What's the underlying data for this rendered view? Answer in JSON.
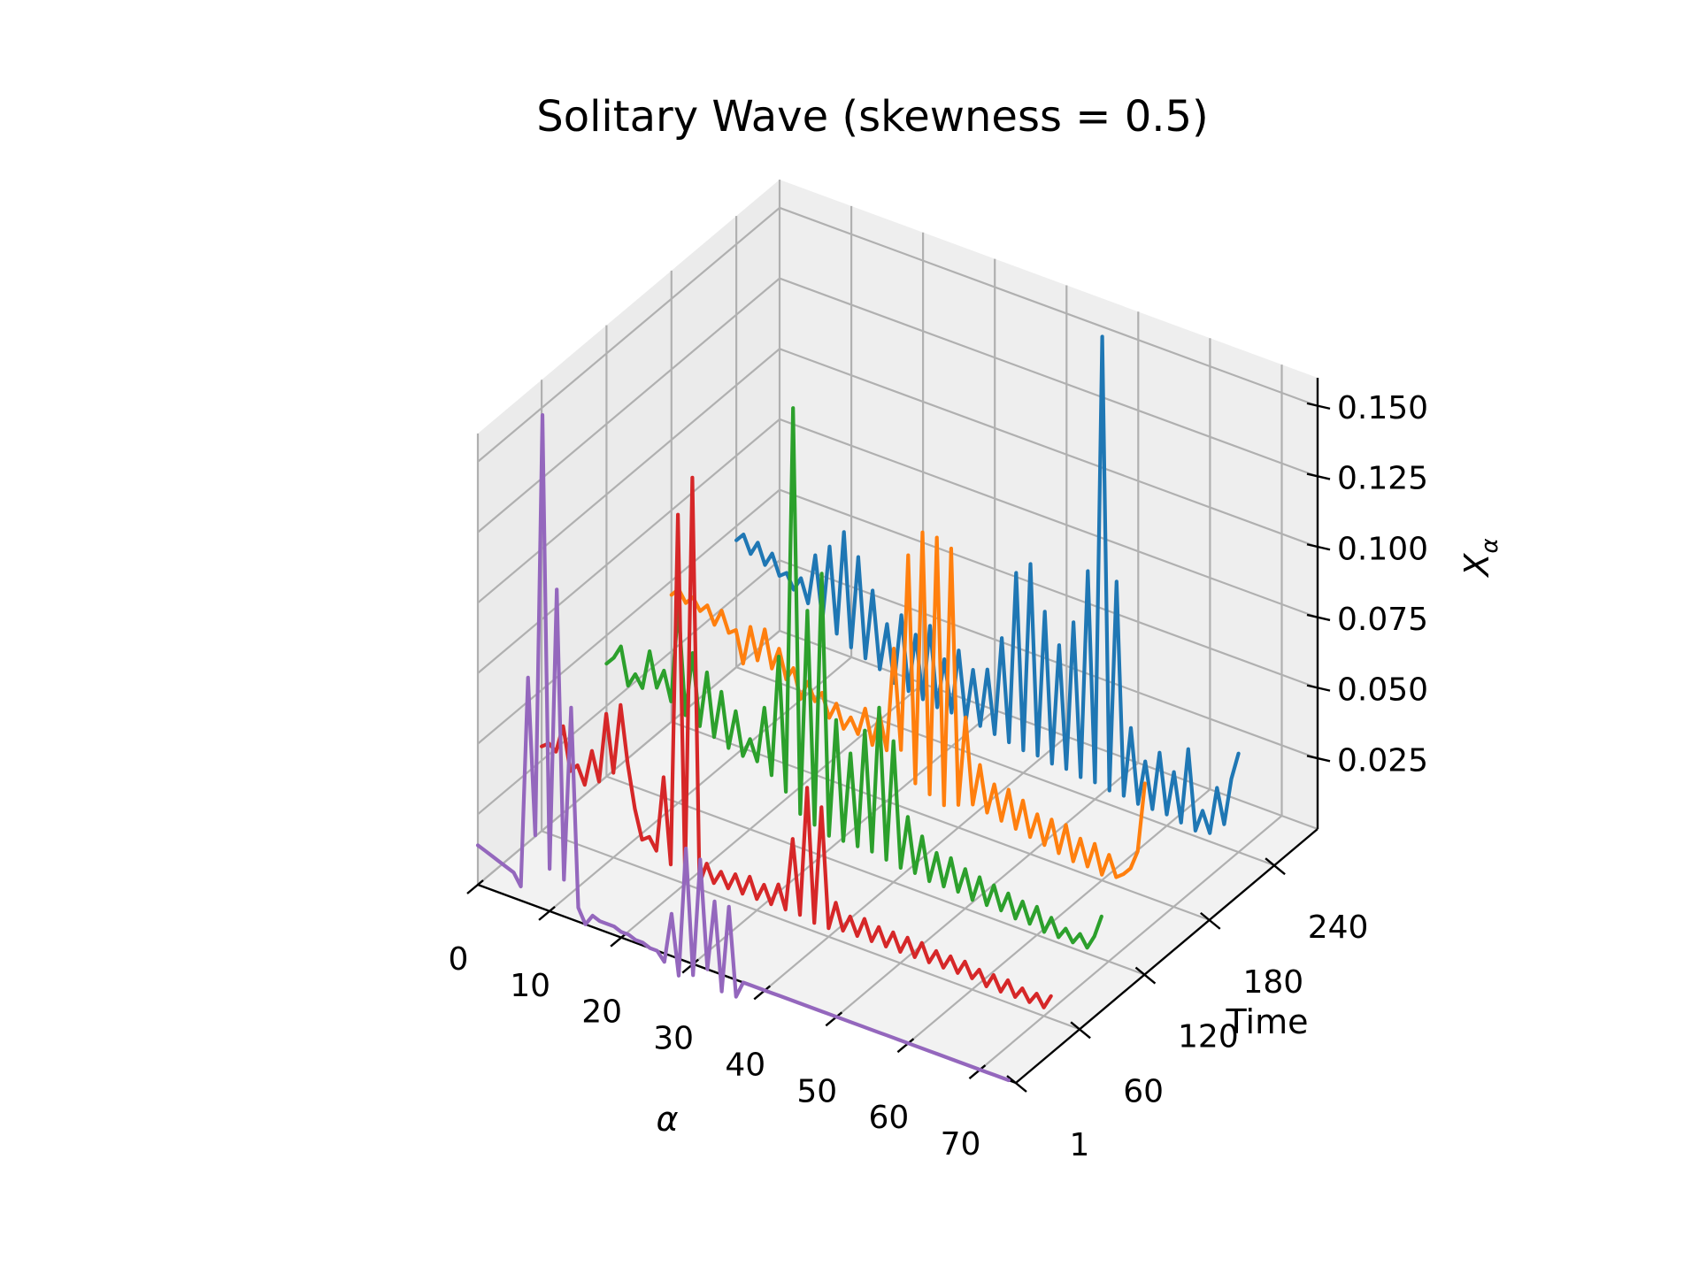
{
  "chart_data": {
    "type": "line",
    "title": "Solitary Wave (skewness = 0.5)",
    "xlabel": "α",
    "ylabel": "Time",
    "zlabel": "X",
    "zlabel_sub": "α",
    "xlim": [
      0,
      75
    ],
    "ylim": [
      1,
      280
    ],
    "zlim": [
      0,
      0.16
    ],
    "x_ticks": [
      "0",
      "10",
      "20",
      "30",
      "40",
      "50",
      "60",
      "70"
    ],
    "x_tick_values": [
      0,
      10,
      20,
      30,
      40,
      50,
      60,
      70
    ],
    "y_ticks": [
      "1",
      "60",
      "120",
      "180",
      "240"
    ],
    "y_tick_values": [
      1,
      60,
      120,
      180,
      240
    ],
    "z_ticks": [
      "0.025",
      "0.050",
      "0.075",
      "0.100",
      "0.125",
      "0.150"
    ],
    "z_tick_values": [
      0.025,
      0.05,
      0.075,
      0.1,
      0.125,
      0.15
    ],
    "grid": true,
    "series": [
      {
        "time": 240,
        "color": "#1f77b4",
        "values": [
          0.045,
          0.048,
          0.042,
          0.047,
          0.04,
          0.045,
          0.038,
          0.04,
          0.035,
          0.04,
          0.032,
          0.05,
          0.028,
          0.055,
          0.025,
          0.062,
          0.022,
          0.055,
          0.02,
          0.045,
          0.018,
          0.035,
          0.015,
          0.04,
          0.014,
          0.035,
          0.013,
          0.04,
          0.012,
          0.03,
          0.012,
          0.035,
          0.011,
          0.03,
          0.011,
          0.032,
          0.01,
          0.045,
          0.009,
          0.07,
          0.008,
          0.075,
          0.008,
          0.06,
          0.007,
          0.05,
          0.007,
          0.06,
          0.006,
          0.08,
          0.006,
          0.165,
          0.005,
          0.08,
          0.005,
          0.03,
          0.004,
          0.02,
          0.004,
          0.025,
          0.004,
          0.02,
          0.003,
          0.03,
          0.002,
          0.01,
          0.003,
          0.02,
          0.008,
          0.025,
          0.035
        ]
      },
      {
        "time": 180,
        "color": "#ff7f0e",
        "values": [
          0.045,
          0.048,
          0.044,
          0.047,
          0.043,
          0.046,
          0.04,
          0.046,
          0.039,
          0.041,
          0.03,
          0.044,
          0.033,
          0.045,
          0.032,
          0.04,
          0.03,
          0.035,
          0.025,
          0.032,
          0.026,
          0.03,
          0.022,
          0.028,
          0.02,
          0.025,
          0.02,
          0.03,
          0.018,
          0.03,
          0.018,
          0.055,
          0.02,
          0.09,
          0.01,
          0.1,
          0.008,
          0.1,
          0.006,
          0.098,
          0.008,
          0.04,
          0.01,
          0.025,
          0.009,
          0.02,
          0.008,
          0.02,
          0.007,
          0.018,
          0.006,
          0.015,
          0.005,
          0.015,
          0.004,
          0.015,
          0.003,
          0.012,
          0.003,
          0.012,
          0.002,
          0.01,
          0.003,
          0.005,
          0.008,
          0.015,
          0.04
        ]
      },
      {
        "time": 120,
        "color": "#2ca02c",
        "values": [
          0.04,
          0.043,
          0.048,
          0.035,
          0.04,
          0.036,
          0.05,
          0.038,
          0.045,
          0.035,
          0.07,
          0.032,
          0.055,
          0.03,
          0.05,
          0.028,
          0.045,
          0.026,
          0.04,
          0.025,
          0.032,
          0.025,
          0.045,
          0.022,
          0.065,
          0.018,
          0.155,
          0.012,
          0.085,
          0.01,
          0.1,
          0.008,
          0.05,
          0.008,
          0.04,
          0.008,
          0.05,
          0.008,
          0.06,
          0.007,
          0.05,
          0.006,
          0.025,
          0.006,
          0.02,
          0.005,
          0.016,
          0.005,
          0.016,
          0.005,
          0.014,
          0.004,
          0.013,
          0.004,
          0.012,
          0.004,
          0.011,
          0.003,
          0.01,
          0.003,
          0.01,
          0.002,
          0.008,
          0.002,
          0.006,
          0.002,
          0.006,
          0.002,
          0.007,
          0.015
        ]
      },
      {
        "time": 60,
        "color": "#d62728",
        "values": [
          0.03,
          0.032,
          0.03,
          0.04,
          0.025,
          0.028,
          0.022,
          0.035,
          0.025,
          0.05,
          0.03,
          0.055,
          0.035,
          0.02,
          0.01,
          0.012,
          0.008,
          0.035,
          0.005,
          0.13,
          0.003,
          0.145,
          0.002,
          0.01,
          0.004,
          0.009,
          0.004,
          0.01,
          0.004,
          0.011,
          0.004,
          0.01,
          0.004,
          0.012,
          0.004,
          0.03,
          0.004,
          0.05,
          0.003,
          0.045,
          0.003,
          0.013,
          0.004,
          0.01,
          0.004,
          0.011,
          0.004,
          0.01,
          0.004,
          0.01,
          0.004,
          0.01,
          0.004,
          0.01,
          0.004,
          0.009,
          0.004,
          0.009,
          0.004,
          0.009,
          0.004,
          0.008,
          0.003,
          0.008,
          0.003,
          0.008,
          0.003,
          0.007,
          0.003,
          0.007,
          0.003,
          0.008
        ]
      },
      {
        "time": 1,
        "color": "#9467bd",
        "values": [
          0.014,
          0.013,
          0.012,
          0.011,
          0.01,
          0.009,
          0.005,
          0.08,
          0.025,
          0.175,
          0.015,
          0.115,
          0.013,
          0.075,
          0.005,
          0.0,
          0.004,
          0.003,
          0.003,
          0.003,
          0.002,
          0.002,
          0.001,
          0.001,
          0.0,
          0.0,
          -0.003,
          0.015,
          -0.006,
          0.04,
          -0.004,
          0.038,
          0.0,
          0.025,
          -0.006,
          0.025,
          -0.006,
          0.0,
          0.0,
          0.0,
          0.0,
          0.0,
          0.0,
          0.0,
          0.0,
          0.0,
          0.0,
          0.0,
          0.0,
          0.0,
          0.0,
          0.0,
          0.0,
          0.0,
          0.0,
          0.0,
          0.0,
          0.0,
          0.0,
          0.0,
          0.0,
          0.0,
          0.0,
          0.0,
          0.0,
          0.0,
          0.0,
          0.0,
          0.0,
          0.0,
          0.0,
          0.0,
          0.0,
          0.0,
          0.0
        ]
      }
    ]
  }
}
